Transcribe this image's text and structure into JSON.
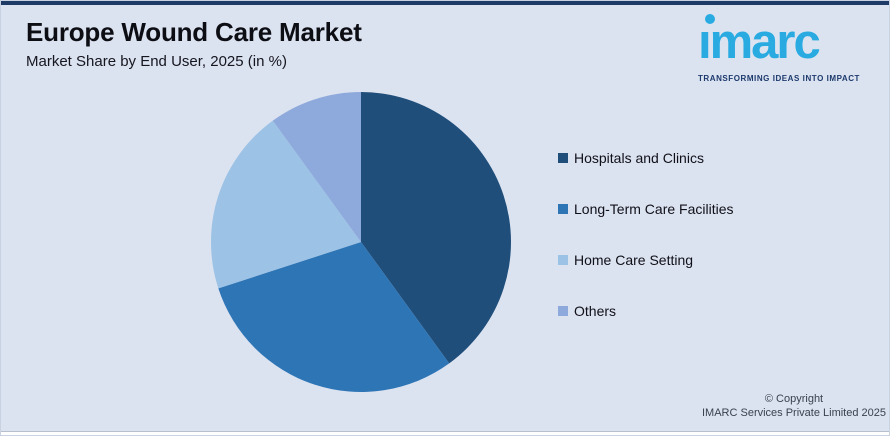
{
  "header": {
    "title": "Europe Wound Care Market",
    "subtitle": "Market Share by End User, 2025 (in %)"
  },
  "logo": {
    "brand": "imarc",
    "brand_display": "ımarc",
    "tagline": "TRANSFORMING IDEAS INTO IMPACT",
    "brand_color": "#29abe2",
    "tagline_color": "#1d3a6d"
  },
  "chart_data": {
    "type": "pie",
    "title": "Europe Wound Care Market",
    "subtitle": "Market Share by End User, 2025 (in %)",
    "unit": "%",
    "labels": [
      "Hospitals and Clinics",
      "Long-Term Care Facilities",
      "Home Care Setting",
      "Others"
    ],
    "values": [
      40,
      30,
      20,
      10
    ],
    "colors": [
      "#1f4e7b",
      "#2e75b6",
      "#9cc2e5",
      "#8ea9db"
    ],
    "start_angle_deg": 0,
    "direction": "clockwise",
    "legend_position": "right",
    "data_labels_shown": false
  },
  "footer": {
    "copyright_line1": "© Copyright",
    "copyright_line2": "IMARC Services Private Limited 2025"
  },
  "theme": {
    "background": "#dbe2f0",
    "top_bar": "#1e3a66",
    "title_color": "#0d0d14",
    "legend_text_color": "#101018",
    "copyright_text_color": "#3a4250"
  }
}
